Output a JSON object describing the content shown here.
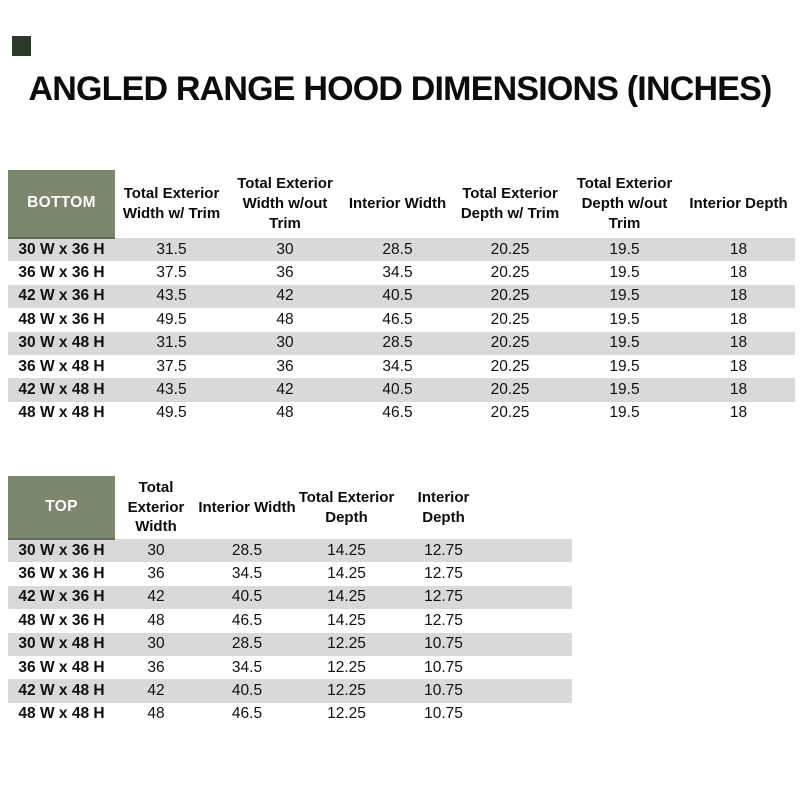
{
  "title": "ANGLED RANGE HOOD DIMENSIONS (INCHES)",
  "colors": {
    "page_bg": "#ffffff",
    "header_green": "#7b886e",
    "header_green_dark": "#5e6c53",
    "stripe_gray": "#d9d9d9",
    "swatch_green": "#2c3a2a",
    "text": "#111111"
  },
  "bottom_table": {
    "label": "BOTTOM",
    "columns": [
      "Total Exterior Width w/ Trim",
      "Total Exterior Width w/out Trim",
      "Interior Width",
      "Total Exterior Depth w/ Trim",
      "Total Exterior Depth w/out Trim",
      "Interior Depth"
    ],
    "rows": [
      {
        "label": "30 W x 36 H",
        "values": [
          "31.5",
          "30",
          "28.5",
          "20.25",
          "19.5",
          "18"
        ]
      },
      {
        "label": "36 W x 36 H",
        "values": [
          "37.5",
          "36",
          "34.5",
          "20.25",
          "19.5",
          "18"
        ]
      },
      {
        "label": "42 W x 36 H",
        "values": [
          "43.5",
          "42",
          "40.5",
          "20.25",
          "19.5",
          "18"
        ]
      },
      {
        "label": "48 W x 36 H",
        "values": [
          "49.5",
          "48",
          "46.5",
          "20.25",
          "19.5",
          "18"
        ]
      },
      {
        "label": "30 W x 48 H",
        "values": [
          "31.5",
          "30",
          "28.5",
          "20.25",
          "19.5",
          "18"
        ]
      },
      {
        "label": "36 W x 48 H",
        "values": [
          "37.5",
          "36",
          "34.5",
          "20.25",
          "19.5",
          "18"
        ]
      },
      {
        "label": "42 W x 48 H",
        "values": [
          "43.5",
          "42",
          "40.5",
          "20.25",
          "19.5",
          "18"
        ]
      },
      {
        "label": "48 W x 48 H",
        "values": [
          "49.5",
          "48",
          "46.5",
          "20.25",
          "19.5",
          "18"
        ]
      }
    ]
  },
  "top_table": {
    "label": "TOP",
    "columns": [
      "Total Exterior Width",
      "Interior Width",
      "Total Exterior Depth",
      "Interior Depth"
    ],
    "rows": [
      {
        "label": "30 W x 36 H",
        "values": [
          "30",
          "28.5",
          "14.25",
          "12.75"
        ]
      },
      {
        "label": "36 W x 36 H",
        "values": [
          "36",
          "34.5",
          "14.25",
          "12.75"
        ]
      },
      {
        "label": "42 W x 36 H",
        "values": [
          "42",
          "40.5",
          "14.25",
          "12.75"
        ]
      },
      {
        "label": "48 W x 36 H",
        "values": [
          "48",
          "46.5",
          "14.25",
          "12.75"
        ]
      },
      {
        "label": "30 W x 48 H",
        "values": [
          "30",
          "28.5",
          "12.25",
          "10.75"
        ]
      },
      {
        "label": "36 W x 48 H",
        "values": [
          "36",
          "34.5",
          "12.25",
          "10.75"
        ]
      },
      {
        "label": "42 W x 48 H",
        "values": [
          "42",
          "40.5",
          "12.25",
          "10.75"
        ]
      },
      {
        "label": "48 W x 48 H",
        "values": [
          "48",
          "46.5",
          "12.25",
          "10.75"
        ]
      }
    ]
  }
}
